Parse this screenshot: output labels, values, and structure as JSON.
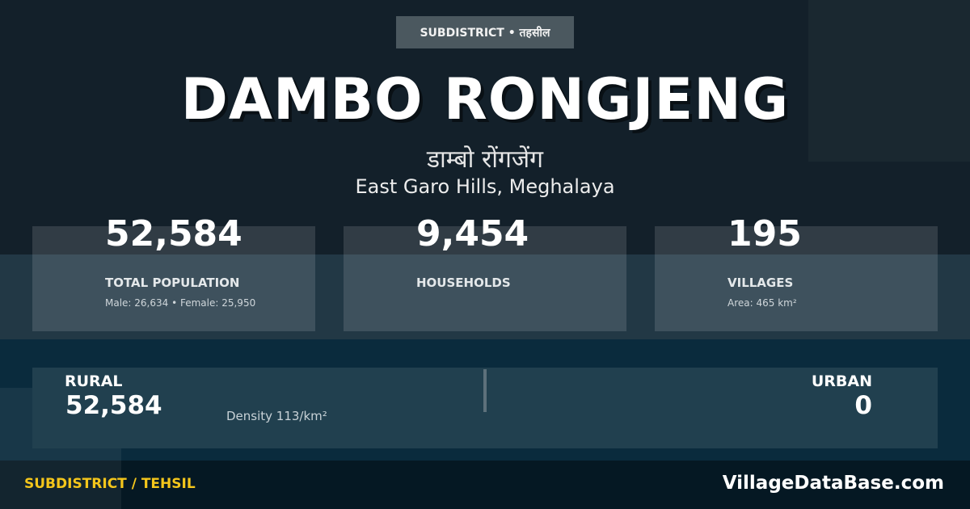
{
  "badge": "SUBDISTRICT • तहसील",
  "title": "DAMBO RONGJENG",
  "title_hindi": "डाम्बो रोंगजेंग",
  "location": "East Garo Hills, Meghalaya",
  "stats": [
    {
      "value": "52,584",
      "label": "TOTAL POPULATION",
      "sub": "Male: 26,634 • Female: 25,950"
    },
    {
      "value": "9,454",
      "label": "HOUSEHOLDS",
      "sub": ""
    },
    {
      "value": "195",
      "label": "VILLAGES",
      "sub": "Area: 465 km²"
    }
  ],
  "rural": {
    "label": "RURAL",
    "value": "52,584",
    "density": "Density 113/km²"
  },
  "urban": {
    "label": "URBAN",
    "value": "0"
  },
  "footer": {
    "left": "SUBDISTRICT / TEHSIL",
    "right": "VillageDataBase.com"
  },
  "colors": {
    "accent": "#f4c61b",
    "background": "#13202a"
  }
}
